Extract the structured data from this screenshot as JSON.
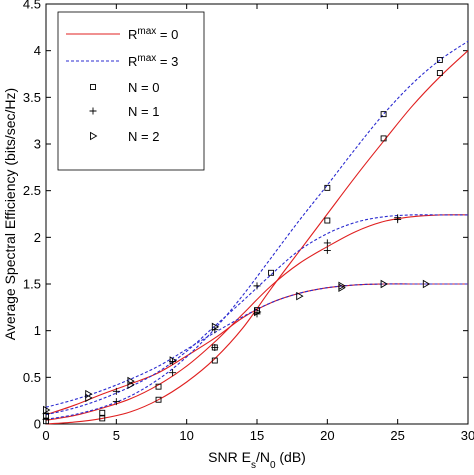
{
  "chart_data": {
    "type": "line",
    "xlabel": "SNR E",
    "xlabel_sub1": "s",
    "xlabel_mid": "/N",
    "xlabel_sub2": "0",
    "xlabel_tail": " (dB)",
    "ylabel": "Average Spectral Efficiency (bits/sec/Hz)",
    "xlim": [
      0,
      30
    ],
    "ylim": [
      0,
      4.5
    ],
    "xticks": [
      "0",
      "5",
      "10",
      "15",
      "20",
      "25",
      "30"
    ],
    "yticks": [
      "0",
      "0.5",
      "1",
      "1.5",
      "2",
      "2.5",
      "3",
      "3.5",
      "4",
      "4.5"
    ],
    "grid": false,
    "legend_position": "top-left",
    "legend": [
      {
        "label": "R",
        "sup": "max",
        "suffix": " = 0",
        "style": "solid-red"
      },
      {
        "label": "R",
        "sup": "max",
        "suffix": " = 3",
        "style": "dotted-blue"
      },
      {
        "label": "N = 0",
        "marker": "square"
      },
      {
        "label": "N = 1",
        "marker": "plus"
      },
      {
        "label": "N = 2",
        "marker": "triangle-right"
      }
    ],
    "colors": {
      "rmax0": "#e02020",
      "rmax3": "#2b2bd0",
      "marker": "#000000"
    },
    "series": [
      {
        "rmax": 0,
        "N": 0,
        "x": [
          0,
          2,
          4,
          6,
          8,
          10,
          12,
          14,
          16,
          18,
          20,
          22,
          24,
          26,
          28,
          30
        ],
        "y": [
          0.0,
          0.02,
          0.06,
          0.13,
          0.26,
          0.45,
          0.7,
          1.03,
          1.45,
          1.85,
          2.25,
          2.65,
          3.03,
          3.4,
          3.72,
          4.0
        ]
      },
      {
        "rmax": 0,
        "N": 1,
        "x": [
          0,
          2,
          4,
          6,
          8,
          10,
          12,
          14,
          16,
          18,
          20,
          22,
          24,
          26,
          28,
          30
        ],
        "y": [
          0.04,
          0.09,
          0.17,
          0.27,
          0.42,
          0.62,
          0.88,
          1.18,
          1.48,
          1.72,
          1.9,
          2.06,
          2.17,
          2.22,
          2.24,
          2.24
        ]
      },
      {
        "rmax": 0,
        "N": 2,
        "x": [
          0,
          2,
          4,
          6,
          8,
          10,
          12,
          14,
          16,
          18,
          20,
          22,
          24,
          26,
          28,
          30
        ],
        "y": [
          0.1,
          0.2,
          0.32,
          0.43,
          0.55,
          0.73,
          0.92,
          1.14,
          1.3,
          1.4,
          1.46,
          1.49,
          1.5,
          1.5,
          1.5,
          1.5
        ]
      },
      {
        "rmax": 3,
        "N": 0,
        "x": [
          0,
          2,
          4,
          6,
          8,
          10,
          12,
          14,
          16,
          18,
          20,
          22,
          24,
          26,
          28,
          30
        ],
        "y": [
          0.05,
          0.1,
          0.18,
          0.3,
          0.48,
          0.72,
          1.02,
          1.38,
          1.78,
          2.18,
          2.56,
          2.95,
          3.32,
          3.64,
          3.9,
          4.1
        ]
      },
      {
        "rmax": 3,
        "N": 1,
        "x": [
          0,
          2,
          4,
          6,
          8,
          10,
          12,
          14,
          16,
          18,
          20,
          22,
          24,
          26,
          28,
          30
        ],
        "y": [
          0.1,
          0.17,
          0.27,
          0.4,
          0.56,
          0.78,
          1.05,
          1.32,
          1.6,
          1.86,
          2.04,
          2.16,
          2.22,
          2.24,
          2.24,
          2.24
        ]
      },
      {
        "rmax": 3,
        "N": 2,
        "x": [
          0,
          2,
          4,
          6,
          8,
          10,
          12,
          14,
          16,
          18,
          20,
          22,
          24,
          26,
          28,
          30
        ],
        "y": [
          0.18,
          0.26,
          0.36,
          0.48,
          0.62,
          0.8,
          0.98,
          1.15,
          1.3,
          1.4,
          1.46,
          1.49,
          1.5,
          1.5,
          1.5,
          1.5
        ]
      }
    ],
    "markers": [
      {
        "shape": "square",
        "x": 0,
        "y": 0.03
      },
      {
        "shape": "square",
        "x": 4,
        "y": 0.06
      },
      {
        "shape": "square",
        "x": 8,
        "y": 0.26
      },
      {
        "shape": "square",
        "x": 12,
        "y": 0.68
      },
      {
        "shape": "square",
        "x": 16,
        "y": 1.62
      },
      {
        "shape": "square",
        "x": 20,
        "y": 2.18
      },
      {
        "shape": "square",
        "x": 24,
        "y": 3.06
      },
      {
        "shape": "square",
        "x": 28,
        "y": 3.76
      },
      {
        "shape": "square",
        "x": 0,
        "y": 0.09
      },
      {
        "shape": "square",
        "x": 4,
        "y": 0.12
      },
      {
        "shape": "square",
        "x": 8,
        "y": 0.4
      },
      {
        "shape": "square",
        "x": 12,
        "y": 0.82
      },
      {
        "shape": "square",
        "x": 15,
        "y": 1.22
      },
      {
        "shape": "square",
        "x": 20,
        "y": 2.53
      },
      {
        "shape": "square",
        "x": 24,
        "y": 3.32
      },
      {
        "shape": "square",
        "x": 28,
        "y": 3.9
      },
      {
        "shape": "plus",
        "x": 0,
        "y": 0.05
      },
      {
        "shape": "plus",
        "x": 5,
        "y": 0.24
      },
      {
        "shape": "plus",
        "x": 9,
        "y": 0.55
      },
      {
        "shape": "plus",
        "x": 12,
        "y": 0.82
      },
      {
        "shape": "plus",
        "x": 15,
        "y": 1.18
      },
      {
        "shape": "plus",
        "x": 20,
        "y": 1.86
      },
      {
        "shape": "plus",
        "x": 25,
        "y": 2.19
      },
      {
        "shape": "plus",
        "x": 0,
        "y": 0.11
      },
      {
        "shape": "plus",
        "x": 5,
        "y": 0.35
      },
      {
        "shape": "plus",
        "x": 9,
        "y": 0.67
      },
      {
        "shape": "plus",
        "x": 12,
        "y": 1.01
      },
      {
        "shape": "plus",
        "x": 15,
        "y": 1.48
      },
      {
        "shape": "plus",
        "x": 20,
        "y": 1.94
      },
      {
        "shape": "plus",
        "x": 25,
        "y": 2.21
      },
      {
        "shape": "triangle",
        "x": 0,
        "y": 0.15
      },
      {
        "shape": "triangle",
        "x": 3,
        "y": 0.28
      },
      {
        "shape": "triangle",
        "x": 6,
        "y": 0.42
      },
      {
        "shape": "triangle",
        "x": 9,
        "y": 0.68
      },
      {
        "shape": "triangle",
        "x": 12,
        "y": 1.04
      },
      {
        "shape": "triangle",
        "x": 15,
        "y": 1.2
      },
      {
        "shape": "triangle",
        "x": 18,
        "y": 1.37
      },
      {
        "shape": "triangle",
        "x": 21,
        "y": 1.48
      },
      {
        "shape": "triangle",
        "x": 24,
        "y": 1.5
      },
      {
        "shape": "triangle",
        "x": 27,
        "y": 1.5
      },
      {
        "shape": "triangle",
        "x": 3,
        "y": 0.32
      },
      {
        "shape": "triangle",
        "x": 6,
        "y": 0.46
      },
      {
        "shape": "triangle",
        "x": 21,
        "y": 1.46
      }
    ]
  }
}
